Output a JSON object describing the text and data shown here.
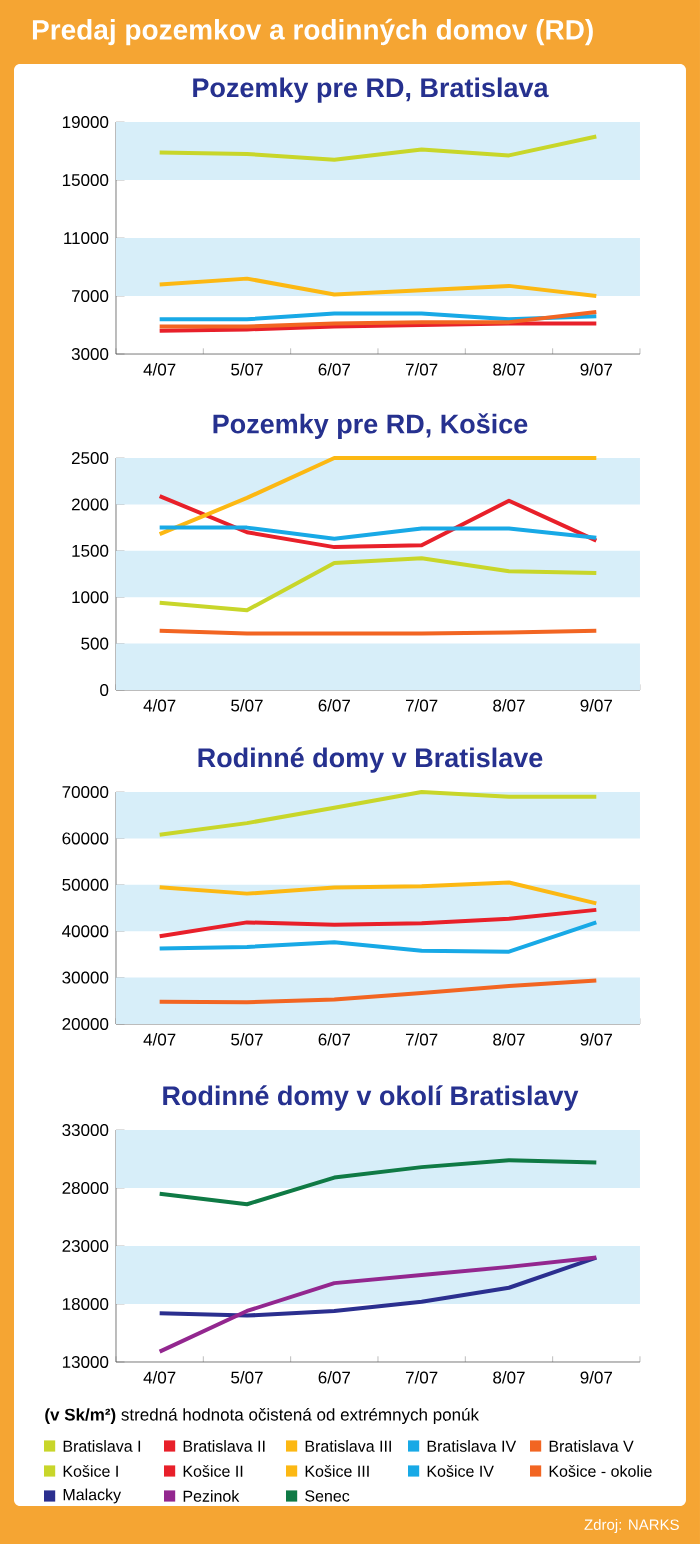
{
  "chart_data": [
    {
      "type": "line",
      "title": "Predaj pozemkov a rodinných domov (RD)",
      "subtitle": "Pozemky pre RD, Bratislava",
      "categories": [
        "4/07",
        "5/07",
        "6/07",
        "7/07",
        "8/07",
        "9/07"
      ],
      "ylim": [
        3000,
        19000
      ],
      "yticks": [
        3000,
        7000,
        11000,
        15000,
        19000
      ],
      "legend": "bottom",
      "bands": [
        {
          "axis": "y",
          "from": 7000,
          "to": 11000,
          "color": "#d7eef9"
        },
        {
          "axis": "y",
          "from": 15000,
          "to": 19000,
          "color": "#d7eef9"
        }
      ],
      "series": [
        {
          "name": "Bratislava I",
          "color": "#c8d62a",
          "values": [
            16900,
            16800,
            16400,
            17100,
            16700,
            18000
          ]
        },
        {
          "name": "Bratislava II",
          "color": "#e8202a",
          "values": [
            4600,
            4700,
            4900,
            5000,
            5100,
            5100
          ]
        },
        {
          "name": "Bratislava III",
          "color": "#fcb813",
          "values": [
            7800,
            8200,
            7100,
            7400,
            7700,
            7000
          ]
        },
        {
          "name": "Bratislava IV",
          "color": "#18a9e6",
          "values": [
            5400,
            5400,
            5800,
            5800,
            5400,
            5600
          ]
        },
        {
          "name": "Bratislava V",
          "color": "#f26522",
          "values": [
            4900,
            4900,
            5100,
            5200,
            5200,
            5900
          ]
        }
      ]
    },
    {
      "type": "line",
      "title": "Pozemky pre RD, Košice",
      "categories": [
        "4/07",
        "5/07",
        "6/07",
        "7/07",
        "8/07",
        "9/07"
      ],
      "ylim": [
        0,
        2500
      ],
      "yticks": [
        0,
        500,
        1000,
        1500,
        2000,
        2500
      ],
      "legend": "bottom",
      "bands": [
        {
          "axis": "y",
          "from": 0,
          "to": 500,
          "color": "#d7eef9"
        },
        {
          "axis": "y",
          "from": 1000,
          "to": 1500,
          "color": "#d7eef9"
        },
        {
          "axis": "y",
          "from": 2000,
          "to": 2500,
          "color": "#d7eef9"
        }
      ],
      "series": [
        {
          "name": "Košice I",
          "color": "#c8d62a",
          "values": [
            940,
            860,
            1370,
            1420,
            1280,
            1260
          ]
        },
        {
          "name": "Košice II",
          "color": "#e8202a",
          "values": [
            2090,
            1700,
            1540,
            1560,
            2040,
            1610
          ]
        },
        {
          "name": "Košice III",
          "color": "#fcb813",
          "values": [
            1680,
            2070,
            2500,
            2500,
            2500,
            2500
          ]
        },
        {
          "name": "Košice IV",
          "color": "#18a9e6",
          "values": [
            1750,
            1750,
            1630,
            1740,
            1740,
            1640
          ]
        },
        {
          "name": "Košice - okolie",
          "color": "#f26522",
          "values": [
            640,
            610,
            610,
            610,
            620,
            640
          ]
        }
      ]
    },
    {
      "type": "line",
      "title": "Rodinné domy v Bratislave",
      "categories": [
        "4/07",
        "5/07",
        "6/07",
        "7/07",
        "8/07",
        "9/07"
      ],
      "ylim": [
        20000,
        70000
      ],
      "yticks": [
        20000,
        30000,
        40000,
        50000,
        60000,
        70000
      ],
      "bands": [
        {
          "axis": "y",
          "from": 20000,
          "to": 30000,
          "color": "#d7eef9"
        },
        {
          "axis": "y",
          "from": 40000,
          "to": 50000,
          "color": "#d7eef9"
        },
        {
          "axis": "y",
          "from": 60000,
          "to": 70000,
          "color": "#d7eef9"
        }
      ],
      "series": [
        {
          "color": "#c8d62a",
          "values": [
            60800,
            63300,
            66600,
            70000,
            69000,
            69000
          ]
        },
        {
          "color": "#e8202a",
          "values": [
            38900,
            41900,
            41400,
            41700,
            42700,
            44600
          ]
        },
        {
          "color": "#fcb813",
          "values": [
            49500,
            48100,
            49400,
            49700,
            50500,
            46000
          ]
        },
        {
          "color": "#18a9e6",
          "values": [
            36300,
            36600,
            37600,
            35800,
            35600,
            41900
          ]
        },
        {
          "color": "#f26522",
          "values": [
            24800,
            24700,
            25300,
            26700,
            28200,
            29400
          ]
        }
      ]
    },
    {
      "type": "line",
      "title": "Rodinné domy v okolí Bratislavy",
      "categories": [
        "4/07",
        "5/07",
        "6/07",
        "7/07",
        "8/07",
        "9/07"
      ],
      "ylim": [
        13000,
        33000
      ],
      "yticks": [
        13000,
        18000,
        23000,
        28000,
        33000
      ],
      "legend": "bottom",
      "bands": [
        {
          "axis": "y",
          "from": 18000,
          "to": 23000,
          "color": "#d7eef9"
        },
        {
          "axis": "y",
          "from": 28000,
          "to": 33000,
          "color": "#d7eef9"
        }
      ],
      "annotations": [
        "**(v Sk/m²)** stredná hodnota očistená od extrémnych ponúk",
        "Zdroj: NARKS"
      ],
      "series": [
        {
          "name": "Malacky",
          "color": "#2b2f8f",
          "values": [
            17200,
            17000,
            17400,
            18200,
            19400,
            22000
          ]
        },
        {
          "name": "Pezinok",
          "color": "#93278f",
          "values": [
            13900,
            17400,
            19800,
            20500,
            21200,
            22000
          ]
        },
        {
          "name": "Senec",
          "color": "#0f7a45",
          "values": [
            27500,
            26600,
            28900,
            29800,
            30400,
            30200
          ]
        }
      ]
    }
  ]
}
